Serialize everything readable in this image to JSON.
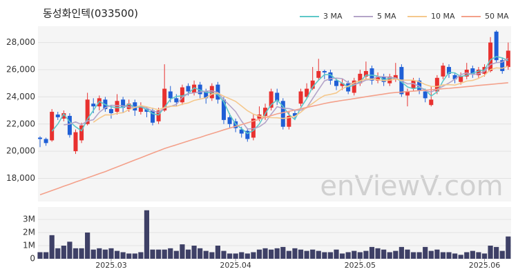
{
  "chart_data": [
    {
      "type": "candlestick",
      "title": "동성화인텍(033500)",
      "watermark": "enViewV.com",
      "up_color": "#e8312f",
      "down_color": "#1f5fd6",
      "legend": "top-right",
      "grid": true,
      "ylim": [
        16300,
        29200
      ],
      "yticks": [
        {
          "value": 18000,
          "label": "18,000"
        },
        {
          "value": 20000,
          "label": "20,000"
        },
        {
          "value": 22000,
          "label": "22,000"
        },
        {
          "value": 24000,
          "label": "24,000"
        },
        {
          "value": 26000,
          "label": "26,000"
        },
        {
          "value": 28000,
          "label": "28,000"
        }
      ],
      "open": [
        21000,
        20900,
        20800,
        22700,
        22400,
        22600,
        20000,
        20800,
        22000,
        23500,
        23300,
        23800,
        23100,
        22900,
        23800,
        23100,
        23600,
        22900,
        23100,
        23000,
        22200,
        23000,
        24400,
        23900,
        23600,
        24800,
        24300,
        24900,
        24400,
        23900,
        24900,
        23800,
        22500,
        22200,
        21600,
        21500,
        21000,
        22400,
        22600,
        23200,
        24300,
        23700,
        21800,
        22800,
        23500,
        24000,
        24600,
        25400,
        25900,
        25800,
        25200,
        24800,
        25000,
        24300,
        25000,
        25500,
        26100,
        25200,
        25500,
        25000,
        25300,
        26200,
        24100,
        24600,
        25200,
        24400,
        23400,
        24400,
        25500,
        26200,
        25600,
        25100,
        25500,
        26100,
        25600,
        25700,
        25900,
        28800,
        26700,
        26200
      ],
      "high": [
        21100,
        21000,
        23100,
        22900,
        23000,
        22800,
        21600,
        22100,
        24300,
        23900,
        24100,
        24000,
        23400,
        24200,
        24000,
        23800,
        23800,
        23600,
        23300,
        23200,
        23200,
        26400,
        24800,
        24200,
        24900,
        25000,
        25200,
        25100,
        24600,
        25000,
        25100,
        24000,
        22800,
        22400,
        21800,
        21700,
        22700,
        23300,
        23500,
        24600,
        24600,
        23900,
        22900,
        23000,
        24600,
        25000,
        26200,
        26800,
        26000,
        26000,
        25400,
        25300,
        25200,
        25400,
        26000,
        26600,
        26300,
        25800,
        25700,
        25700,
        26500,
        26400,
        24600,
        25400,
        25400,
        24600,
        24800,
        25600,
        26500,
        26400,
        25800,
        25800,
        26500,
        26300,
        26200,
        26400,
        28400,
        28900,
        26900,
        28000
      ],
      "low": [
        20300,
        20400,
        20700,
        22300,
        22200,
        21000,
        19800,
        20600,
        21900,
        22800,
        23000,
        22900,
        22400,
        22700,
        22800,
        22900,
        22600,
        22700,
        22500,
        21900,
        22000,
        22900,
        23600,
        23300,
        23400,
        24100,
        24100,
        23900,
        23500,
        23700,
        23500,
        22000,
        21700,
        21400,
        21000,
        20700,
        20800,
        22200,
        22300,
        23000,
        23400,
        21600,
        21600,
        22300,
        23300,
        23900,
        24500,
        25200,
        25300,
        24900,
        24500,
        24500,
        24200,
        24100,
        24800,
        25300,
        24900,
        25000,
        24800,
        24800,
        25100,
        24000,
        23300,
        24400,
        24200,
        23600,
        23300,
        24200,
        25300,
        25400,
        25000,
        24900,
        25300,
        25400,
        25400,
        25500,
        25800,
        26500,
        25700,
        26000
      ],
      "close": [
        20900,
        20600,
        22900,
        22500,
        22800,
        21200,
        21400,
        21900,
        23800,
        23300,
        23900,
        23100,
        22800,
        23700,
        23200,
        23500,
        23000,
        23300,
        22900,
        22100,
        23000,
        24600,
        23900,
        23600,
        24700,
        24400,
        24900,
        24200,
        23900,
        24800,
        23800,
        22300,
        22000,
        21700,
        21300,
        20900,
        22400,
        22700,
        23200,
        24400,
        23700,
        21800,
        22600,
        22600,
        24400,
        24600,
        25200,
        25900,
        25800,
        25200,
        24800,
        25000,
        24400,
        25200,
        25700,
        25900,
        25200,
        25500,
        25100,
        25500,
        25600,
        24200,
        24400,
        25200,
        24500,
        23900,
        23800,
        25400,
        26300,
        25700,
        25300,
        25500,
        26000,
        25700,
        26000,
        26200,
        28000,
        26700,
        25900,
        27400
      ],
      "series": [
        {
          "name": "3 MA",
          "color": "#5ec8c8",
          "values": [
            null,
            null,
            21467,
            22000,
            22733,
            22167,
            21800,
            21500,
            22367,
            23000,
            23667,
            23433,
            23267,
            23200,
            23233,
            23467,
            23233,
            23267,
            23067,
            22767,
            22667,
            23233,
            23833,
            24033,
            24067,
            24233,
            24667,
            24500,
            24333,
            24300,
            24167,
            23633,
            22700,
            22000,
            21667,
            21300,
            21533,
            22000,
            22767,
            23433,
            23767,
            23300,
            22700,
            22333,
            23200,
            23867,
            24733,
            25233,
            25633,
            25633,
            25267,
            25000,
            24733,
            24867,
            25100,
            25600,
            25600,
            25533,
            25267,
            25367,
            25400,
            25100,
            24733,
            24600,
            24700,
            24533,
            24067,
            24367,
            25167,
            25800,
            25767,
            25500,
            25600,
            25733,
            25900,
            25967,
            26733,
            26967,
            26867,
            26667
          ]
        },
        {
          "name": "5 MA",
          "color": "#b4a4c8",
          "values": [
            null,
            null,
            null,
            null,
            21940,
            22000,
            22160,
            21960,
            22220,
            22320,
            22860,
            23200,
            23380,
            23360,
            23340,
            23260,
            23240,
            23340,
            23180,
            22960,
            22860,
            23180,
            23300,
            23440,
            23960,
            24240,
            24300,
            24360,
            24420,
            24440,
            24320,
            23800,
            23360,
            22920,
            22220,
            21640,
            21660,
            21800,
            22100,
            22720,
            23280,
            23160,
            23140,
            23020,
            23020,
            23200,
            23880,
            24540,
            25180,
            25340,
            25380,
            25340,
            25040,
            24920,
            25020,
            25240,
            25280,
            25500,
            25480,
            25440,
            25380,
            25180,
            24960,
            24980,
            24780,
            24440,
            24360,
            24560,
            24780,
            25020,
            25300,
            25640,
            25760,
            25640,
            25700,
            25880,
            26380,
            26520,
            26560,
            26840
          ]
        },
        {
          "name": "10 MA",
          "color": "#f5c88c",
          "values": [
            null,
            null,
            null,
            null,
            null,
            null,
            null,
            null,
            null,
            22130,
            22430,
            22680,
            22670,
            22790,
            22830,
            23060,
            23220,
            23360,
            23270,
            23150,
            23060,
            23210,
            23320,
            23310,
            23460,
            23550,
            23740,
            23830,
            23930,
            24200,
            24280,
            24050,
            23860,
            23670,
            23330,
            22980,
            22730,
            22580,
            22510,
            22470,
            22460,
            22410,
            22470,
            22560,
            22870,
            23240,
            23520,
            23840,
            24100,
            24180,
            24290,
            24610,
            24790,
            25050,
            25180,
            25310,
            25310,
            25270,
            25200,
            25230,
            25310,
            25230,
            25230,
            25230,
            25110,
            24910,
            24770,
            24760,
            24880,
            24900,
            24870,
            25000,
            25160,
            25210,
            25360,
            25590,
            26010,
            26140,
            26100,
            26270
          ]
        },
        {
          "name": "50 MA",
          "color": "#f4a08a",
          "values": [
            16800,
            16950,
            17110,
            17260,
            17420,
            17570,
            17730,
            17880,
            18040,
            18190,
            18350,
            18500,
            18670,
            18840,
            19010,
            19180,
            19350,
            19520,
            19690,
            19860,
            20030,
            20200,
            20340,
            20470,
            20610,
            20750,
            20890,
            21020,
            21160,
            21300,
            21430,
            21570,
            21700,
            21830,
            21960,
            22090,
            22220,
            22360,
            22490,
            22620,
            22750,
            22840,
            22940,
            23030,
            23130,
            23220,
            23320,
            23410,
            23510,
            23600,
            23670,
            23740,
            23800,
            23870,
            23940,
            24010,
            24080,
            24140,
            24210,
            24280,
            24320,
            24350,
            24390,
            24420,
            24460,
            24490,
            24530,
            24560,
            24600,
            24630,
            24670,
            24710,
            24750,
            24790,
            24840,
            24880,
            24920,
            24960,
            25000,
            25040
          ]
        }
      ]
    },
    {
      "type": "bar",
      "color": "#3e4066",
      "grid": true,
      "ylim": [
        0,
        3950000
      ],
      "yticks": [
        0,
        {
          "value": 1000000,
          "label": "1M"
        },
        {
          "value": 2000000,
          "label": "2M"
        },
        {
          "value": 3000000,
          "label": "3M"
        }
      ],
      "categories": [
        null,
        null,
        null,
        null,
        null,
        null,
        null,
        null,
        null,
        null,
        null,
        null,
        "2025.03",
        null,
        null,
        null,
        null,
        null,
        null,
        null,
        null,
        null,
        null,
        null,
        null,
        null,
        null,
        null,
        null,
        null,
        null,
        null,
        null,
        "2025.04",
        null,
        null,
        null,
        null,
        null,
        null,
        null,
        null,
        null,
        null,
        null,
        null,
        null,
        null,
        null,
        null,
        null,
        null,
        null,
        null,
        "2025.05",
        null,
        null,
        null,
        null,
        null,
        null,
        null,
        null,
        null,
        null,
        null,
        null,
        null,
        null,
        null,
        null,
        null,
        null,
        null,
        null,
        "2025.06",
        null,
        null,
        null,
        null
      ],
      "values": [
        500000,
        500000,
        1800000,
        800000,
        1000000,
        1300000,
        800000,
        800000,
        2000000,
        700000,
        800000,
        700000,
        800000,
        600000,
        500000,
        400000,
        400000,
        500000,
        3700000,
        700000,
        700000,
        700000,
        800000,
        600000,
        1100000,
        700000,
        1000000,
        800000,
        600000,
        500000,
        1000000,
        600000,
        400000,
        400000,
        500000,
        400000,
        500000,
        700000,
        800000,
        700000,
        800000,
        900000,
        600000,
        800000,
        700000,
        600000,
        700000,
        600000,
        500000,
        500000,
        700000,
        400000,
        500000,
        600000,
        500000,
        600000,
        900000,
        800000,
        700000,
        500000,
        600000,
        900000,
        700000,
        500000,
        500000,
        900000,
        600000,
        700000,
        500000,
        500000,
        400000,
        300000,
        500000,
        600000,
        500000,
        400000,
        1000000,
        900000,
        600000,
        1700000
      ]
    }
  ]
}
